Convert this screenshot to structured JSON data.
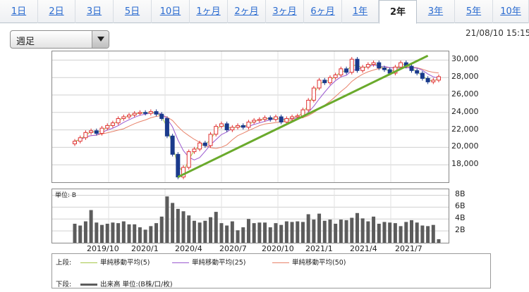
{
  "tabs": [
    {
      "label": "1日"
    },
    {
      "label": "2日"
    },
    {
      "label": "3日"
    },
    {
      "label": "5日"
    },
    {
      "label": "10日"
    },
    {
      "label": "1ヶ月"
    },
    {
      "label": "2ヶ月"
    },
    {
      "label": "3ヶ月"
    },
    {
      "label": "6ヶ月"
    },
    {
      "label": "1年"
    },
    {
      "label": "2年",
      "active": true
    },
    {
      "label": "3年"
    },
    {
      "label": "5年"
    },
    {
      "label": "10年"
    }
  ],
  "period_select": {
    "value": "週足"
  },
  "timestamp": "21/08/10 15:15",
  "colors": {
    "up": "#e03030",
    "down": "#1a3a8c",
    "ma5": "#a7c84a",
    "ma25": "#9b59d0",
    "ma50": "#e8826a",
    "trendline": "#6aaa2c",
    "volume": "#5c5c5c",
    "link": "#2a6bd0"
  },
  "chart_data": [
    {
      "type": "candlestick",
      "title": "",
      "ylim": [
        16000,
        31000
      ],
      "yticks": [
        "30,000",
        "28,000",
        "26,000",
        "24,000",
        "22,000",
        "20,000",
        "18,000"
      ],
      "ytick_values": [
        30000,
        28000,
        26000,
        24000,
        22000,
        20000,
        18000
      ],
      "grid": true,
      "series": [
        {
          "name": "単純移動平均(5)"
        },
        {
          "name": "単純移動平均(25)"
        },
        {
          "name": "単純移動平均(50)"
        }
      ],
      "closes": [
        20700,
        21100,
        21700,
        21900,
        21600,
        22200,
        22500,
        22800,
        23300,
        23500,
        23700,
        23900,
        24000,
        23900,
        24100,
        23800,
        23300,
        21300,
        19200,
        16600,
        17700,
        19500,
        19800,
        20500,
        20200,
        21500,
        22400,
        22700,
        22000,
        22300,
        22500,
        22300,
        22900,
        23100,
        23200,
        23400,
        23200,
        23500,
        22900,
        23300,
        23500,
        23600,
        24300,
        25400,
        26800,
        27700,
        27400,
        28000,
        28300,
        29000,
        28600,
        30100,
        28800,
        29200,
        29500,
        29700,
        29100,
        28900,
        28500,
        29200,
        29700,
        29300,
        28800,
        28500,
        27900,
        27500,
        27700,
        28100
      ],
      "trendline": {
        "from": 16600,
        "to": 30500
      },
      "annotations": []
    },
    {
      "type": "bar",
      "title": "",
      "ylabel": "単位: B",
      "ylim": [
        0,
        9
      ],
      "yticks": [
        "8B",
        "6B",
        "4B",
        "2B"
      ],
      "ytick_values": [
        8,
        6,
        4,
        2
      ],
      "series": [
        {
          "name": "出来高 単位:(B株/口/枚)"
        }
      ],
      "values": [
        3.2,
        2.9,
        3.6,
        5.5,
        3.4,
        3.0,
        3.2,
        3.4,
        3.3,
        3.6,
        3.1,
        3.1,
        2.6,
        2.2,
        2.8,
        3.3,
        4.4,
        7.8,
        6.7,
        5.7,
        5.3,
        4.6,
        3.7,
        3.4,
        3.7,
        4.3,
        5.2,
        3.3,
        2.9,
        3.6,
        2.1,
        2.6,
        4.0,
        3.3,
        3.4,
        3.4,
        2.6,
        3.3,
        3.0,
        3.6,
        3.5,
        3.6,
        3.5,
        4.8,
        3.9,
        4.9,
        3.7,
        3.9,
        3.2,
        3.9,
        3.8,
        4.2,
        5.0,
        4.1,
        3.6,
        4.4,
        3.2,
        3.5,
        3.4,
        3.3,
        2.8,
        3.5,
        3.8,
        3.4,
        2.9,
        2.8,
        3.0,
        0.6
      ]
    }
  ],
  "xaxis": {
    "ticks": [
      "2019/10",
      "2020/1",
      "2020/4",
      "2020/7",
      "2020/10",
      "2021/1",
      "2021/4",
      "2021/7"
    ]
  },
  "legend": {
    "upper_label": "上段:",
    "lower_label": "下段:",
    "items": [
      {
        "label": "単純移動平均(5)"
      },
      {
        "label": "単純移動平均(25)"
      },
      {
        "label": "単純移動平均(50)"
      }
    ],
    "volume_label": "出来高 単位:(B株/口/枚)"
  }
}
